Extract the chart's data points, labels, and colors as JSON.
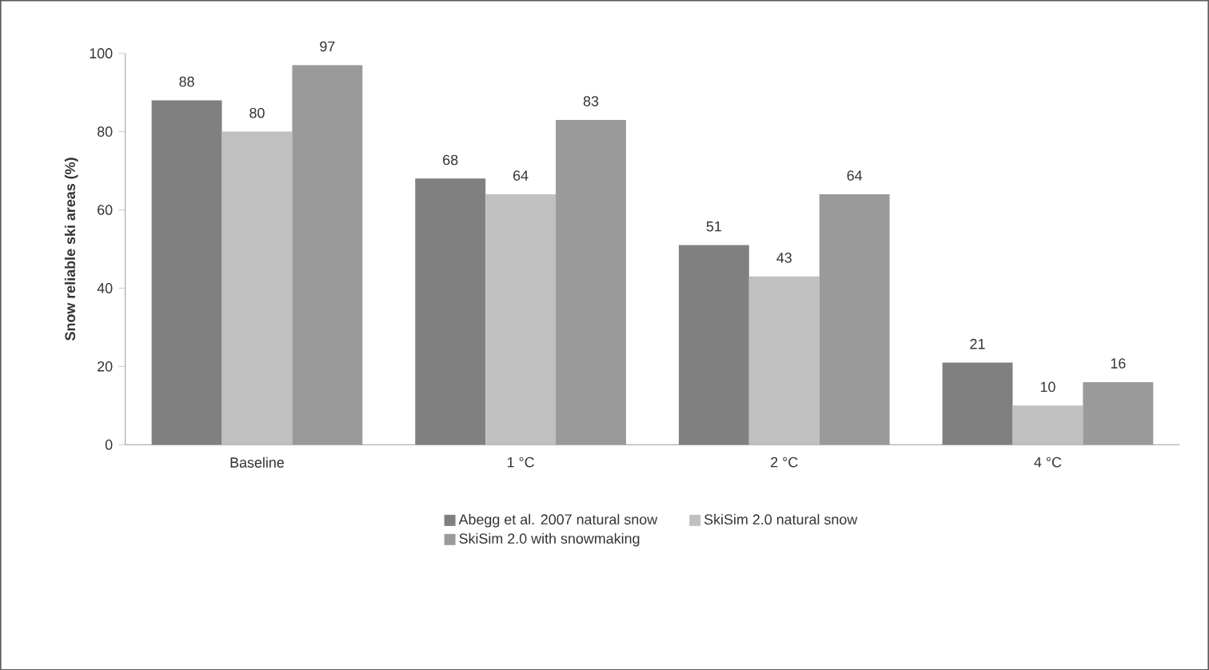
{
  "chart_data": {
    "type": "bar",
    "ylabel": "Snow reliable ski areas (%)",
    "categories": [
      "Baseline",
      "1 °C",
      "2 °C",
      "4 °C"
    ],
    "series": [
      {
        "name": "Abegg et al. 2007    natural snow",
        "color": "#808080",
        "values": [
          88,
          68,
          51,
          21
        ]
      },
      {
        "name": "SkiSim 2.0    natural snow",
        "color": "#c0c0c0",
        "values": [
          80,
          64,
          43,
          10
        ]
      },
      {
        "name": "SkiSim 2.0    with snowmaking",
        "color": "#9a9a9a",
        "values": [
          97,
          83,
          64,
          16
        ]
      }
    ],
    "ylim": [
      0,
      100
    ],
    "yticks": [
      0,
      20,
      40,
      60,
      80,
      100
    ],
    "grid": false,
    "legend": "bottom",
    "data_labels": true
  }
}
